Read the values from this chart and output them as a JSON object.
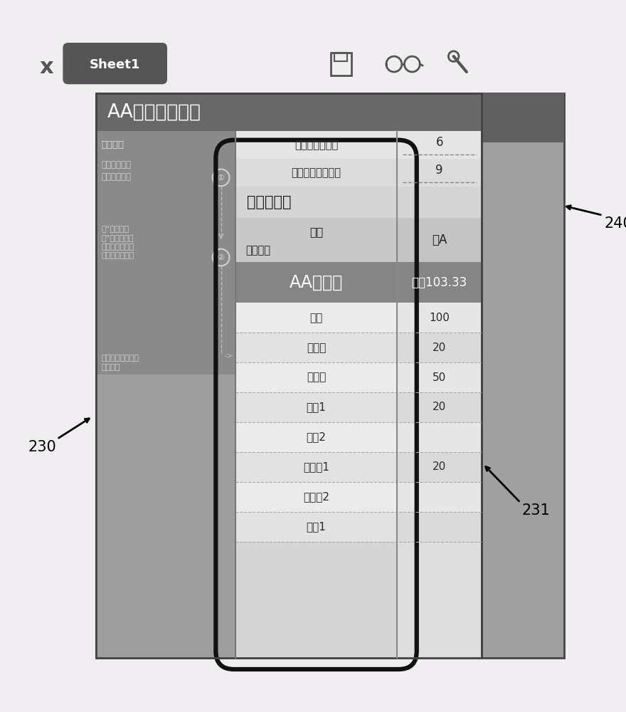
{
  "bg_color": "#f0eef0",
  "sheet_tab_text": "Sheet1",
  "sheet_tab_bg": "#555555",
  "sheet_tab_color": "#ffffff",
  "title_text": "AA制生活小工具",
  "input_label1": "请输入参与人数",
  "input_value1": "6",
  "input_label2": "请输入消费项目数",
  "input_value2": "9",
  "section_title": "消费明细表",
  "name_header": "姓名",
  "activity_header": "活动项目",
  "name_value": "小A",
  "result_label": "AA制结果",
  "result_value": "收回103.33",
  "left_usage": "使用说明",
  "left_text1": "输入参与人数\n和消费项目数",
  "left_text2": "在“消费明细\n表”中（虚线框\n区域）输入对应\n的每人消费金额",
  "left_text3": "输入完成后在此处\n查看结果",
  "circle1": "①",
  "circle2": "②",
  "data_rows": [
    {
      "label": "吃饥",
      "value": "100"
    },
    {
      "label": "看电影",
      "value": "20"
    },
    {
      "label": "下午茶",
      "value": "50"
    },
    {
      "label": "打车1",
      "value": "20"
    },
    {
      "label": "打车2",
      "value": ""
    },
    {
      "label": "买东西1",
      "value": "20"
    },
    {
      "label": "买东西2",
      "value": ""
    },
    {
      "label": "其他1",
      "value": ""
    }
  ],
  "label_240": "240",
  "label_230": "230",
  "label_231": "231"
}
